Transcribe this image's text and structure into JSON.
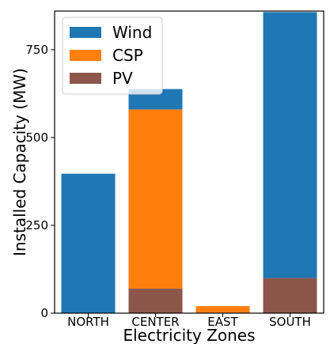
{
  "chart_data": {
    "type": "bar",
    "stacked": true,
    "categories": [
      "NORTH",
      "CENTER",
      "EAST",
      "SOUTH"
    ],
    "series": [
      {
        "name": "PV",
        "color": "#8c564b",
        "values": [
          0,
          70,
          0,
          100
        ]
      },
      {
        "name": "CSP",
        "color": "#ff7f0e",
        "values": [
          0,
          510,
          20,
          0
        ]
      },
      {
        "name": "Wind",
        "color": "#1f77b4",
        "values": [
          397,
          58,
          0,
          757
        ]
      }
    ],
    "legend_order": [
      "Wind",
      "CSP",
      "PV"
    ],
    "legend_position": "top-left",
    "xlabel": "Electricity Zones",
    "ylabel": "Installed Capacity (MW)",
    "ylim": [
      0,
      860
    ],
    "yticks": [
      0,
      250,
      500,
      750
    ],
    "grid": false
  }
}
